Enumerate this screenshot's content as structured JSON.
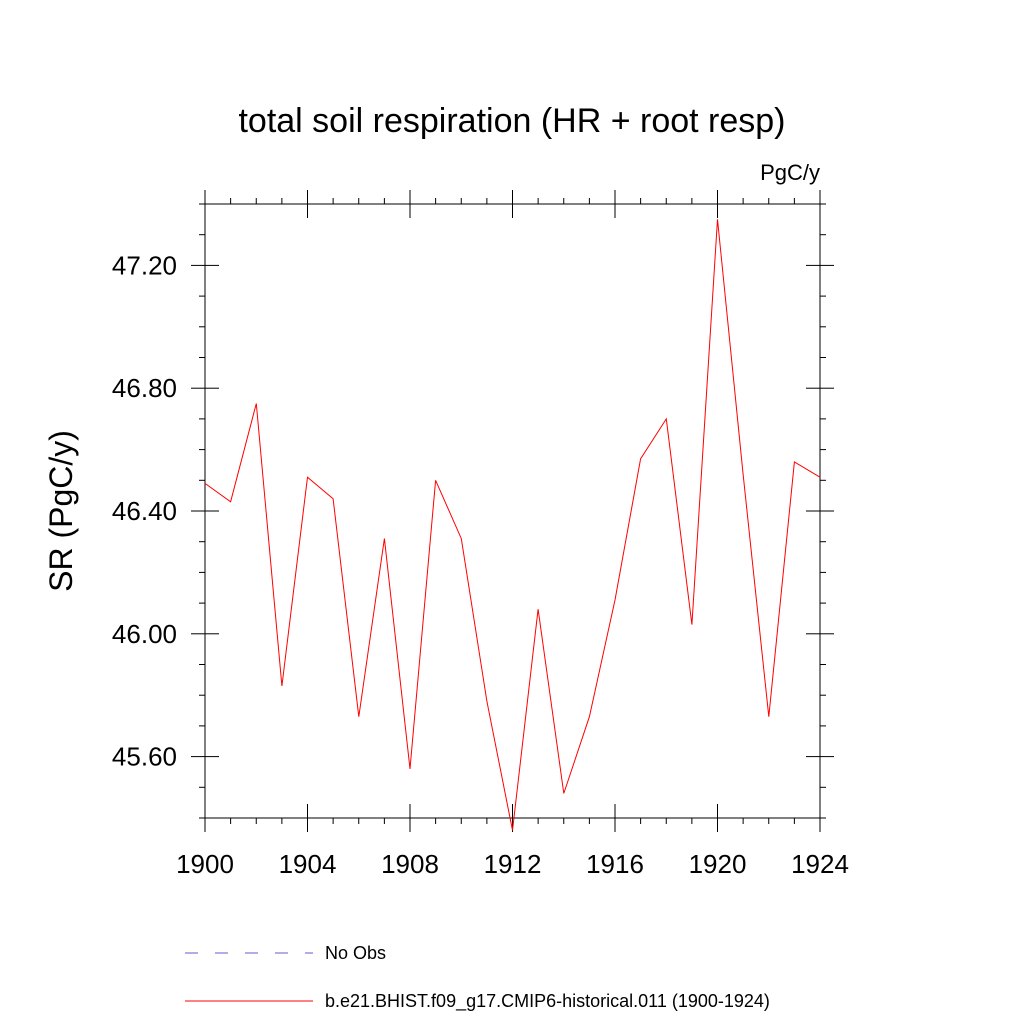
{
  "chart_data": {
    "type": "line",
    "title": "total soil respiration (HR + root resp)",
    "units": "PgC/y",
    "ylabel": "SR  (PgC/y)",
    "xlabel": "",
    "xlim": [
      1900,
      1924
    ],
    "ylim": [
      45.4,
      47.4
    ],
    "x_ticks": [
      1900,
      1904,
      1908,
      1912,
      1916,
      1920,
      1924
    ],
    "x_tick_labels": [
      "1900",
      "1904",
      "1908",
      "1912",
      "1916",
      "1920",
      "1924"
    ],
    "y_ticks": [
      45.6,
      46.0,
      46.4,
      46.8,
      47.2
    ],
    "y_tick_labels": [
      "45.60",
      "46.00",
      "46.40",
      "46.80",
      "47.20"
    ],
    "grid": false,
    "series": [
      {
        "name": "b.e21.BHIST.f09_g17.CMIP6-historical.011 (1900-1924)",
        "color": "#ff0000",
        "x": [
          1900,
          1901,
          1902,
          1903,
          1904,
          1905,
          1906,
          1907,
          1908,
          1909,
          1910,
          1911,
          1912,
          1913,
          1914,
          1915,
          1916,
          1917,
          1918,
          1919,
          1920,
          1921,
          1922,
          1923,
          1924
        ],
        "y": [
          46.49,
          46.43,
          46.75,
          45.83,
          46.51,
          46.44,
          45.73,
          46.31,
          45.56,
          46.5,
          46.31,
          45.78,
          45.36,
          46.08,
          45.48,
          45.73,
          46.11,
          46.57,
          46.7,
          46.03,
          47.35,
          46.52,
          45.73,
          46.56,
          46.51
        ]
      }
    ],
    "legend": [
      {
        "label": "No Obs",
        "color": "#6a5acd",
        "style": "dashed"
      },
      {
        "label": "b.e21.BHIST.f09_g17.CMIP6-historical.011 (1900-1924)",
        "color": "#ff0000",
        "style": "solid"
      }
    ]
  }
}
